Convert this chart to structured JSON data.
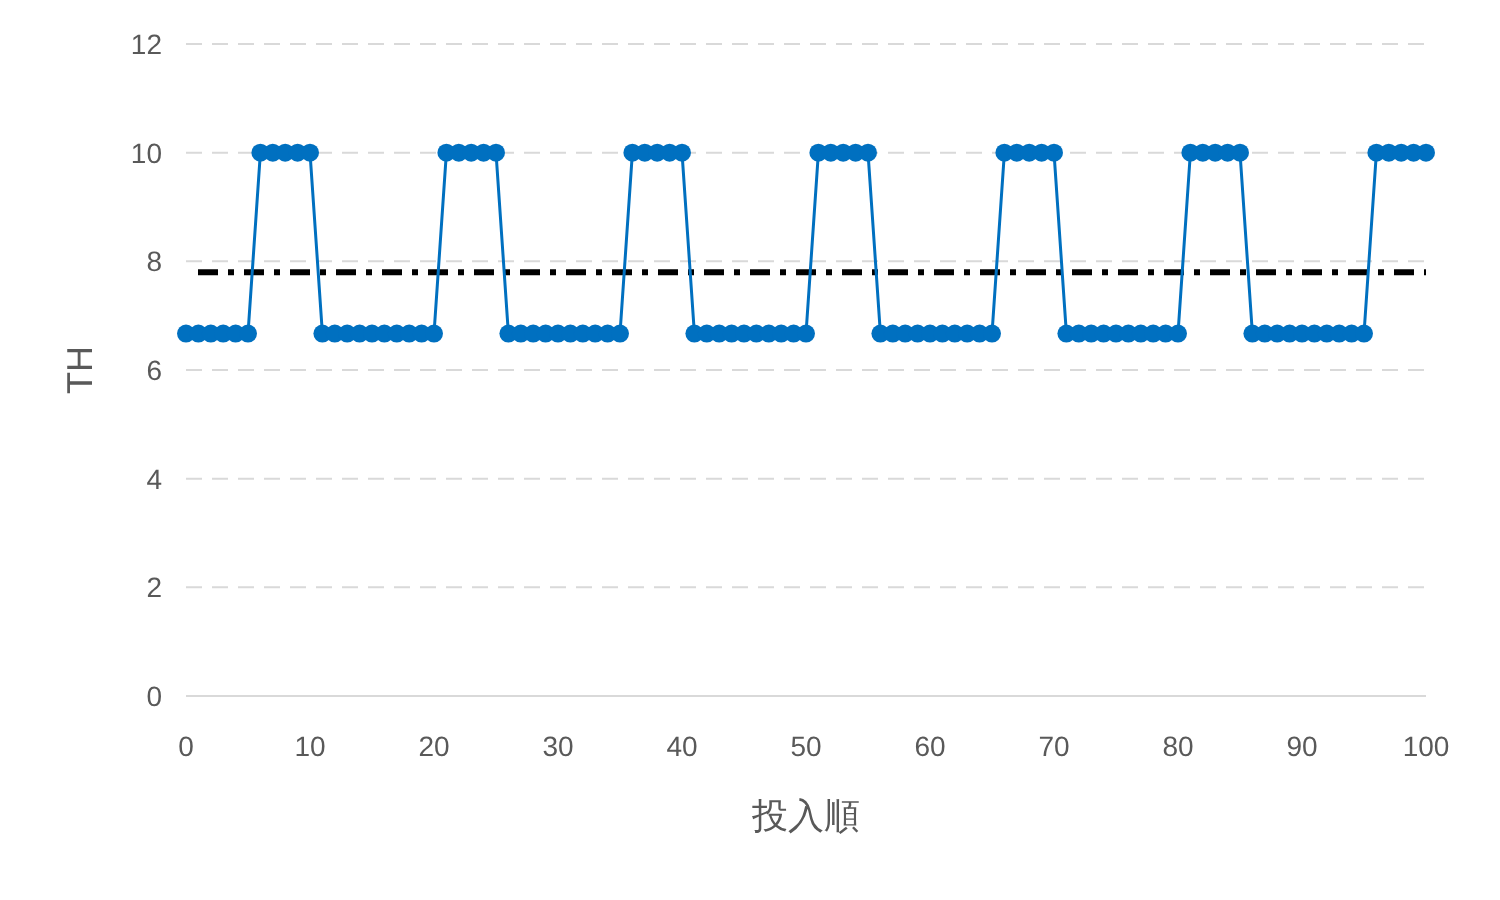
{
  "chart_data": {
    "type": "line",
    "xlabel": "投入順",
    "ylabel": "TH",
    "x": [
      0,
      1,
      2,
      3,
      4,
      5,
      6,
      7,
      8,
      9,
      10,
      11,
      12,
      13,
      14,
      15,
      16,
      17,
      18,
      19,
      20,
      21,
      22,
      23,
      24,
      25,
      26,
      27,
      28,
      29,
      30,
      31,
      32,
      33,
      34,
      35,
      36,
      37,
      38,
      39,
      40,
      41,
      42,
      43,
      44,
      45,
      46,
      47,
      48,
      49,
      50,
      51,
      52,
      53,
      54,
      55,
      56,
      57,
      58,
      59,
      60,
      61,
      62,
      63,
      64,
      65,
      66,
      67,
      68,
      69,
      70,
      71,
      72,
      73,
      74,
      75,
      76,
      77,
      78,
      79,
      80,
      81,
      82,
      83,
      84,
      85,
      86,
      87,
      88,
      89,
      90,
      91,
      92,
      93,
      94,
      95,
      96,
      97,
      98,
      99,
      100
    ],
    "series": [
      {
        "color": "#0070c0",
        "values": [
          6.67,
          6.67,
          6.67,
          6.67,
          6.67,
          6.67,
          10,
          10,
          10,
          10,
          10,
          6.67,
          6.67,
          6.67,
          6.67,
          6.67,
          6.67,
          6.67,
          6.67,
          6.67,
          6.67,
          10,
          10,
          10,
          10,
          10,
          6.67,
          6.67,
          6.67,
          6.67,
          6.67,
          6.67,
          6.67,
          6.67,
          6.67,
          6.67,
          10,
          10,
          10,
          10,
          10,
          6.67,
          6.67,
          6.67,
          6.67,
          6.67,
          6.67,
          6.67,
          6.67,
          6.67,
          6.67,
          10,
          10,
          10,
          10,
          10,
          6.67,
          6.67,
          6.67,
          6.67,
          6.67,
          6.67,
          6.67,
          6.67,
          6.67,
          6.67,
          10,
          10,
          10,
          10,
          10,
          6.67,
          6.67,
          6.67,
          6.67,
          6.67,
          6.67,
          6.67,
          6.67,
          6.67,
          6.67,
          10,
          10,
          10,
          10,
          10,
          6.67,
          6.67,
          6.67,
          6.67,
          6.67,
          6.67,
          6.67,
          6.67,
          6.67,
          6.67,
          10,
          10,
          10,
          10,
          10
        ]
      }
    ],
    "ref_lines": [
      {
        "axis": "y",
        "value": 7.8,
        "color": "#000000",
        "line_style": "dashdot"
      }
    ],
    "xlim": [
      0,
      100
    ],
    "xticks": [
      0,
      10,
      20,
      30,
      40,
      50,
      60,
      70,
      80,
      90,
      100
    ],
    "ylim": [
      0,
      12
    ],
    "yticks": [
      0,
      2,
      4,
      6,
      8,
      10,
      12
    ],
    "grid": "y",
    "marker": "circle",
    "line_style": "solid"
  }
}
